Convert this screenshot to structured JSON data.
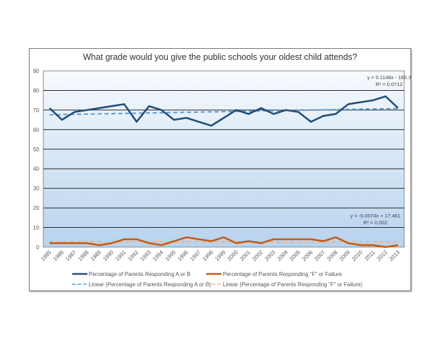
{
  "chart_data": {
    "type": "line",
    "title": "What grade would you give the public schools your oldest child attends?",
    "categories": [
      "1985",
      "1986",
      "1987",
      "1988",
      "1989",
      "1990",
      "1991",
      "1992",
      "1993",
      "1994",
      "1995",
      "1996",
      "1997",
      "1998",
      "1999",
      "2000",
      "2001",
      "2002",
      "2003",
      "2004",
      "2005",
      "2006",
      "2007",
      "2008",
      "2009",
      "2010",
      "2011",
      "2012",
      "2013"
    ],
    "ylim": [
      0,
      90
    ],
    "yticks": [
      0,
      10,
      20,
      30,
      40,
      50,
      60,
      70,
      80,
      90
    ],
    "grid": true,
    "legend_position": "bottom",
    "series": [
      {
        "name": "Percentage of Parents Responding A or B",
        "color": "#1f4e79",
        "values": [
          71,
          65,
          69,
          70,
          71,
          72,
          73,
          64,
          72,
          70,
          65,
          66,
          64,
          62,
          66,
          70,
          68,
          71,
          68,
          70,
          69,
          64,
          67,
          68,
          73,
          74,
          75,
          77,
          71
        ]
      },
      {
        "name": "Percentage of Parents Responding \"F\" or Failure",
        "color": "#c55a11",
        "values": [
          2,
          2,
          2,
          2,
          1,
          2,
          4,
          4,
          2,
          1,
          3,
          5,
          4,
          3,
          5,
          2,
          3,
          2,
          4,
          4,
          4,
          4,
          3,
          5,
          2,
          1,
          1,
          0,
          1
        ]
      }
    ],
    "trendlines": [
      {
        "name": "Linear (Percentage of Parents Responding A or B)",
        "color": "#5b9bd5",
        "slope": 0.1148,
        "intercept": -160.3,
        "equation": "y = 0.1148x - 160.3",
        "r2": "R² = 0.0712"
      },
      {
        "name": "Linear (Percentage of Parents Responding \"F\" or Failure)",
        "color": "#f4b183",
        "slope": -0.0074,
        "intercept": 17.461,
        "equation": "y = -0.0074x + 17.461",
        "r2": "R² = 0.002"
      }
    ]
  }
}
